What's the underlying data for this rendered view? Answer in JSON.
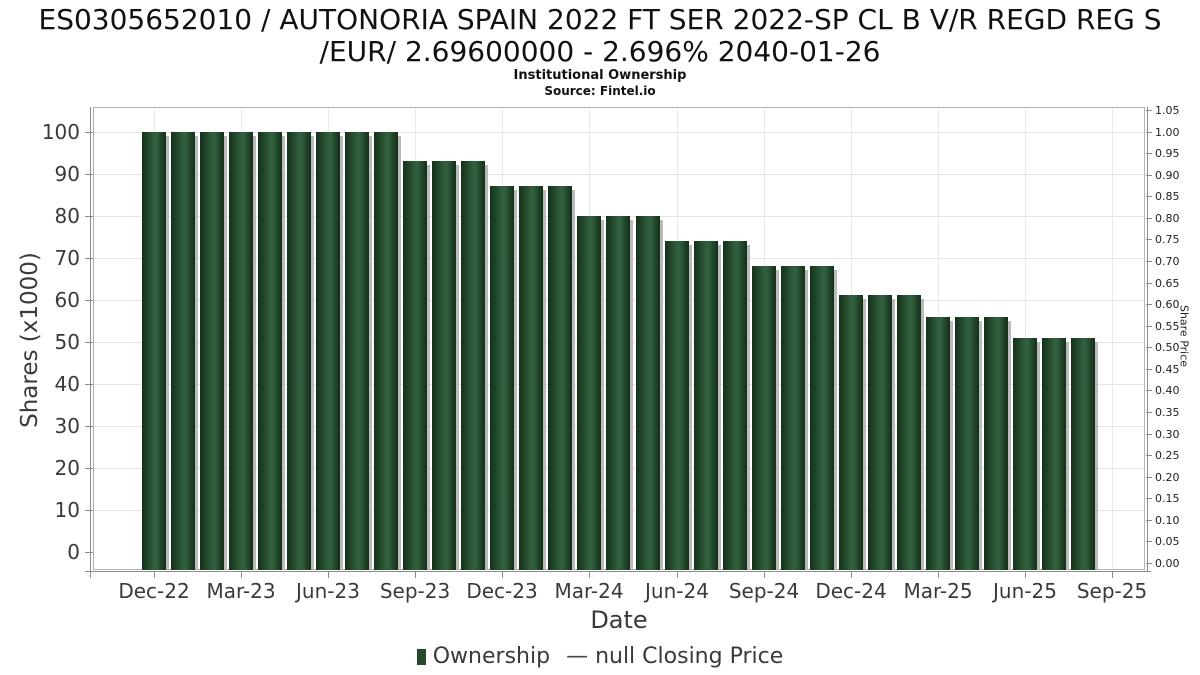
{
  "title": {
    "line1": "ES0305652010 / AUTONORIA SPAIN 2022 FT SER 2022-SP CL B V/R REGD REG S",
    "line2": "/EUR/ 2.69600000 - 2.696% 2040-01-26"
  },
  "subtitle": "Institutional Ownership",
  "source": "Source: Fintel.io",
  "chart_data": {
    "type": "bar",
    "title": "Institutional Ownership",
    "xlabel": "Date",
    "ylabel_left": "Shares (x1000)",
    "ylabel_right": "Share Price",
    "x": [
      "Dec-22",
      "Jan-23",
      "Feb-23",
      "Mar-23",
      "Apr-23",
      "May-23",
      "Jun-23",
      "Jul-23",
      "Aug-23",
      "Sep-23",
      "Oct-23",
      "Nov-23",
      "Dec-23",
      "Jan-24",
      "Feb-24",
      "Mar-24",
      "Apr-24",
      "May-24",
      "Jun-24",
      "Jul-24",
      "Aug-24",
      "Sep-24",
      "Oct-24",
      "Nov-24",
      "Dec-24",
      "Jan-25",
      "Feb-25",
      "Mar-25",
      "Apr-25",
      "May-25",
      "Jun-25",
      "Jul-25",
      "Aug-25"
    ],
    "series": [
      {
        "name": "Ownership",
        "values": [
          100,
          100,
          100,
          100,
          100,
          100,
          100,
          100,
          100,
          93,
          93,
          93,
          87,
          87,
          87,
          80,
          80,
          80,
          74,
          74,
          74,
          68,
          68,
          68,
          61,
          61,
          61,
          56,
          56,
          56,
          51,
          51,
          51
        ]
      },
      {
        "name": "null Closing Price",
        "values": []
      }
    ],
    "x_tick_labels": [
      "Dec-22",
      "Mar-23",
      "Jun-23",
      "Sep-23",
      "Dec-23",
      "Mar-24",
      "Jun-24",
      "Sep-24",
      "Dec-24",
      "Mar-25",
      "Jun-25",
      "Sep-25"
    ],
    "left_axis": {
      "min": 0,
      "max": 100,
      "step": 10,
      "tick_labels": [
        "0",
        "10",
        "20",
        "30",
        "40",
        "50",
        "60",
        "70",
        "80",
        "90",
        "100"
      ]
    },
    "right_axis": {
      "min": 0.0,
      "max": 1.05,
      "step": 0.05,
      "tick_labels": [
        "0.00",
        "0.05",
        "0.10",
        "0.15",
        "0.20",
        "0.25",
        "0.30",
        "0.35",
        "0.40",
        "0.45",
        "0.50",
        "0.55",
        "0.60",
        "0.65",
        "0.70",
        "0.75",
        "0.80",
        "0.85",
        "0.90",
        "0.95",
        "1.00",
        "1.05"
      ]
    },
    "legend": [
      "Ownership",
      "null Closing Price"
    ],
    "grid": true,
    "legend_position": "bottom",
    "colors": {
      "bar": "#2e5a38",
      "bar_edge": "#143019",
      "bar_shadow": "#aaaaaa",
      "legend_swatch": "#27492c",
      "gridline": "#e4e4e4",
      "axis": "#8c8c8c",
      "text": "#3a3a3a"
    }
  }
}
